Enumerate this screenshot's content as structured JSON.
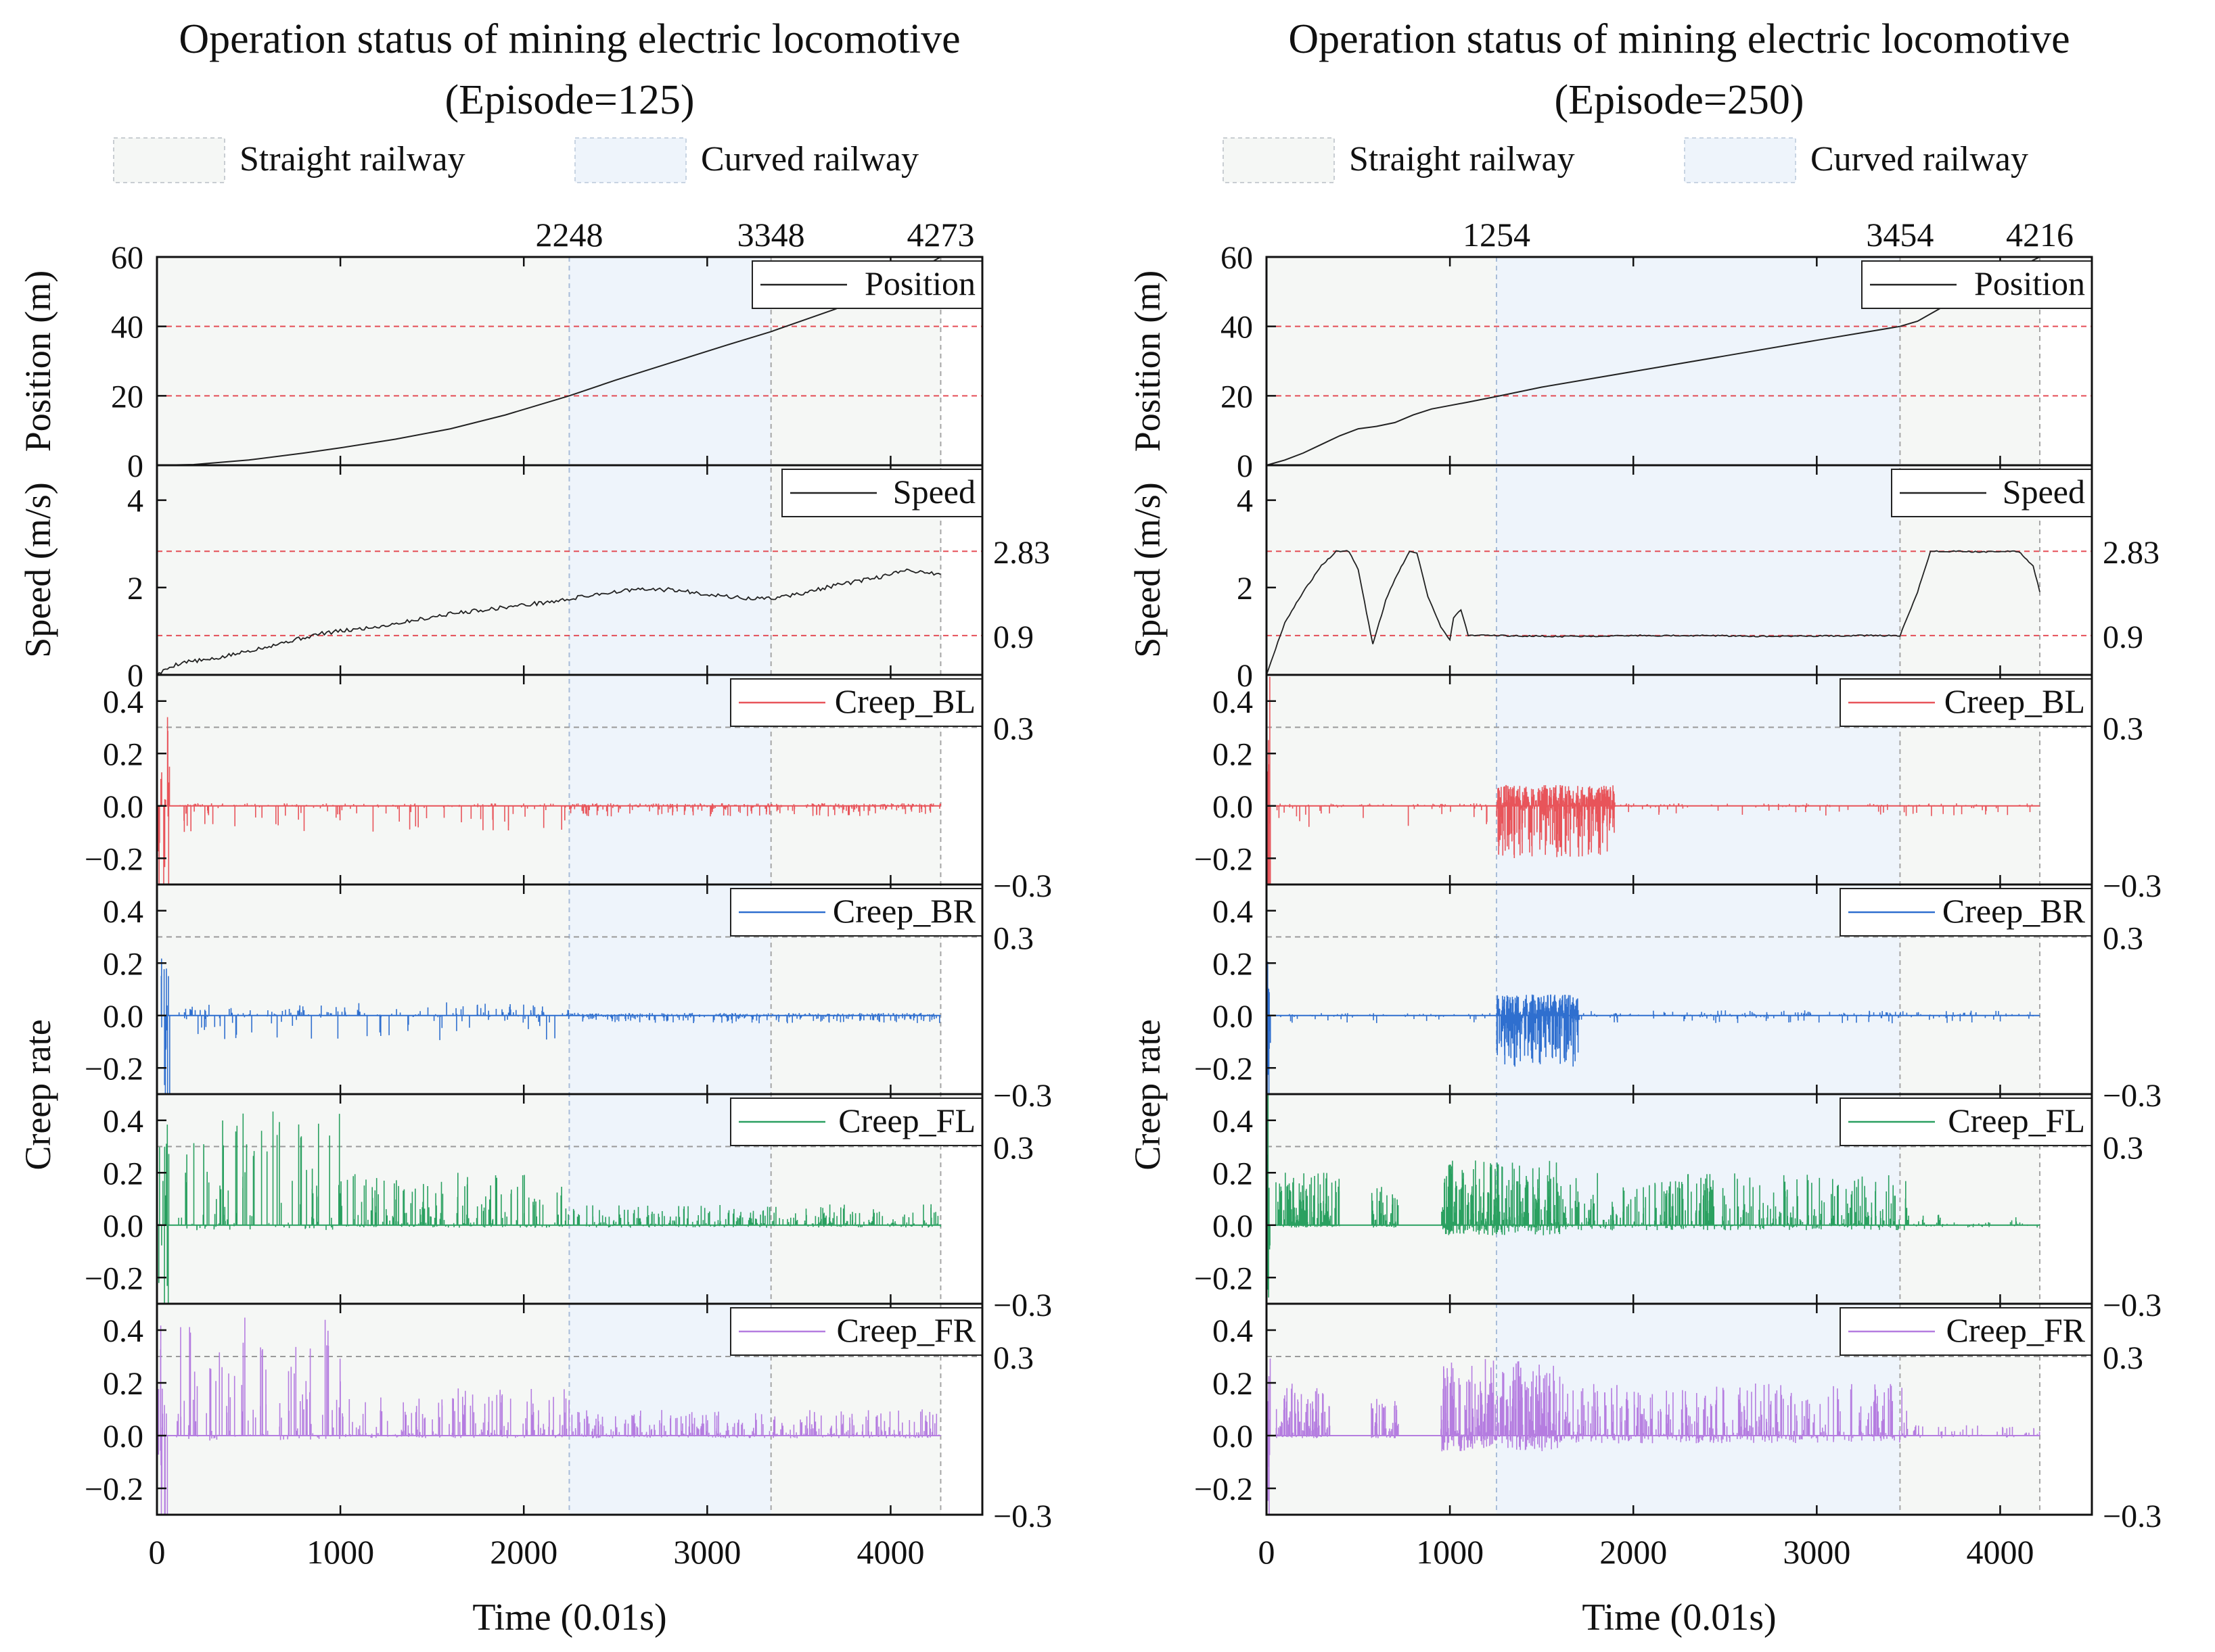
{
  "legend": {
    "straight_label": "Straight railway",
    "curved_label": "Curved railway"
  },
  "colors": {
    "straight_bg": "#f5f7f5",
    "curved_bg": "#eef4fb",
    "threshold_line": "#e0303a",
    "position": "#222222",
    "speed": "#222222",
    "creep_bl": "#e8545a",
    "creep_br": "#2f6fcf",
    "creep_fl": "#2aa060",
    "creep_fr": "#b57de0"
  },
  "chart_data": [
    {
      "type": "line",
      "title_line1": "Operation status of mining electric locomotive",
      "title_line2": "(Episode=125)",
      "xlabel": "Time (0.01s)",
      "xlim": [
        0,
        4500
      ],
      "x_ticks": [
        "0",
        "1000",
        "2000",
        "3000",
        "4000"
      ],
      "segment_markers": [
        "2248",
        "3348",
        "4273"
      ],
      "segments": [
        {
          "type": "straight",
          "x": [
            0,
            2248
          ]
        },
        {
          "type": "curved",
          "x": [
            2248,
            3348
          ]
        },
        {
          "type": "straight",
          "x": [
            3348,
            4273
          ]
        }
      ],
      "position": {
        "ylabel": "Position (m)",
        "ylim": [
          0,
          60
        ],
        "y_ticks": [
          "0",
          "20",
          "40",
          "60"
        ],
        "thresholds": [
          20,
          40
        ],
        "legend": "Position",
        "x": [
          0,
          200,
          500,
          800,
          1000,
          1300,
          1600,
          1900,
          2248,
          2500,
          2800,
          3100,
          3348,
          3700,
          4000,
          4273
        ],
        "y": [
          0,
          0.2,
          1.5,
          3.5,
          5,
          7.5,
          10.5,
          14.5,
          20,
          24.5,
          29.5,
          34.5,
          38.5,
          45,
          52,
          60
        ]
      },
      "speed": {
        "ylabel": "Speed (m/s)",
        "ylim": [
          0,
          4.8
        ],
        "y_ticks": [
          "0",
          "2",
          "4"
        ],
        "thresholds": [
          0.9,
          2.83
        ],
        "right_labels": [
          "0.9",
          "2.83"
        ],
        "legend": "Speed",
        "x": [
          0,
          80,
          150,
          300,
          450,
          600,
          750,
          900,
          1000,
          1200,
          1400,
          1600,
          1800,
          2000,
          2200,
          2400,
          2600,
          2800,
          3000,
          3200,
          3348,
          3500,
          3700,
          3900,
          4100,
          4273
        ],
        "y": [
          0,
          0.2,
          0.3,
          0.35,
          0.5,
          0.65,
          0.8,
          0.95,
          1.0,
          1.1,
          1.25,
          1.4,
          1.5,
          1.6,
          1.7,
          1.85,
          1.95,
          1.95,
          1.85,
          1.75,
          1.75,
          1.85,
          2.05,
          2.2,
          2.4,
          2.3
        ]
      },
      "creep": {
        "ylabel": "Creep rate",
        "ylim": [
          -0.3,
          0.5
        ],
        "y_ticks": [
          "−0.2",
          "0.0",
          "0.2",
          "0.4"
        ],
        "thresholds": [
          -0.3,
          0.3
        ],
        "right_labels": [
          "0.3",
          "−0.3"
        ],
        "panels": [
          {
            "name": "Creep_BL",
            "color_key": "creep_bl",
            "seed": 11,
            "startup": 70,
            "zones": [
              {
                "x": [
                  100,
                  2248
                ],
                "up": 0.01,
                "down": 0.1,
                "rate": 10
              },
              {
                "x": [
                  2248,
                  4273
                ],
                "up": 0.01,
                "down": 0.04,
                "rate": 30
              }
            ]
          },
          {
            "name": "Creep_BR",
            "color_key": "creep_br",
            "seed": 23,
            "startup": 70,
            "zones": [
              {
                "x": [
                  100,
                  2248
                ],
                "up": 0.05,
                "down": 0.1,
                "rate": 10
              },
              {
                "x": [
                  2248,
                  4273
                ],
                "up": 0.01,
                "down": 0.03,
                "rate": 30
              }
            ]
          },
          {
            "name": "Creep_FL",
            "color_key": "creep_fl",
            "seed": 37,
            "startup": 70,
            "zones": [
              {
                "x": [
                  100,
                  1000
                ],
                "up": 0.45,
                "down": 0.02,
                "rate": 14
              },
              {
                "x": [
                  1000,
                  2248
                ],
                "up": 0.2,
                "down": 0.01,
                "rate": 20
              },
              {
                "x": [
                  2248,
                  4273
                ],
                "up": 0.08,
                "down": 0.01,
                "rate": 25
              }
            ]
          },
          {
            "name": "Creep_FR",
            "color_key": "creep_fr",
            "seed": 53,
            "startup": 70,
            "zones": [
              {
                "x": [
                  100,
                  1000
                ],
                "up": 0.45,
                "down": 0.02,
                "rate": 14
              },
              {
                "x": [
                  1000,
                  2248
                ],
                "up": 0.18,
                "down": 0.01,
                "rate": 20
              },
              {
                "x": [
                  2248,
                  4273
                ],
                "up": 0.1,
                "down": 0.01,
                "rate": 25
              }
            ]
          }
        ]
      }
    },
    {
      "type": "line",
      "title_line1": "Operation status of mining electric locomotive",
      "title_line2": "(Episode=250)",
      "xlabel": "Time (0.01s)",
      "xlim": [
        0,
        4500
      ],
      "x_ticks": [
        "0",
        "1000",
        "2000",
        "3000",
        "4000"
      ],
      "segment_markers": [
        "1254",
        "3454",
        "4216"
      ],
      "segments": [
        {
          "type": "straight",
          "x": [
            0,
            1254
          ]
        },
        {
          "type": "curved",
          "x": [
            1254,
            3454
          ]
        },
        {
          "type": "straight",
          "x": [
            3454,
            4216
          ]
        }
      ],
      "position": {
        "ylabel": "Position (m)",
        "ylim": [
          0,
          60
        ],
        "y_ticks": [
          "0",
          "20",
          "40",
          "60"
        ],
        "thresholds": [
          20,
          40
        ],
        "legend": "Position",
        "x": [
          0,
          100,
          200,
          300,
          400,
          500,
          600,
          700,
          800,
          900,
          1000,
          1100,
          1254,
          1500,
          2000,
          2500,
          3000,
          3454,
          3550,
          3700,
          3900,
          4100,
          4216
        ],
        "y": [
          0,
          1.5,
          3.5,
          6,
          8.5,
          10.5,
          11.2,
          12.3,
          14.5,
          16.2,
          17.2,
          18.2,
          19.8,
          22.5,
          27,
          31.5,
          36,
          40,
          41.5,
          46,
          51.5,
          57,
          60
        ]
      },
      "speed": {
        "ylabel": "Speed (m/s)",
        "ylim": [
          0,
          4.8
        ],
        "y_ticks": [
          "0",
          "2",
          "4"
        ],
        "thresholds": [
          0.9,
          2.83
        ],
        "right_labels": [
          "0.9",
          "2.83"
        ],
        "legend": "Speed",
        "x": [
          0,
          100,
          200,
          300,
          380,
          450,
          500,
          580,
          650,
          700,
          780,
          820,
          880,
          950,
          1000,
          1020,
          1060,
          1100,
          1254,
          1600,
          2000,
          2400,
          2800,
          3200,
          3454,
          3550,
          3620,
          3700,
          3900,
          4100,
          4180,
          4216
        ],
        "y": [
          0,
          1.2,
          1.9,
          2.5,
          2.83,
          2.83,
          2.4,
          0.7,
          1.7,
          2.2,
          2.83,
          2.8,
          1.8,
          1.1,
          0.8,
          1.3,
          1.5,
          0.9,
          0.9,
          0.88,
          0.9,
          0.9,
          0.88,
          0.9,
          0.9,
          1.9,
          2.83,
          2.83,
          2.82,
          2.83,
          2.5,
          1.9
        ]
      },
      "creep": {
        "ylabel": "Creep rate",
        "ylim": [
          -0.3,
          0.5
        ],
        "y_ticks": [
          "−0.2",
          "0.0",
          "0.2",
          "0.4"
        ],
        "thresholds": [
          -0.3,
          0.3
        ],
        "right_labels": [
          "0.3",
          "−0.3"
        ],
        "panels": [
          {
            "name": "Creep_BL",
            "color_key": "creep_bl",
            "seed": 67,
            "startup": 20,
            "zones": [
              {
                "x": [
                  50,
                  1254
                ],
                "up": 0.01,
                "down": 0.08,
                "rate": 10
              },
              {
                "x": [
                  1254,
                  1900
                ],
                "up": 0.08,
                "down": 0.2,
                "rate": 120
              },
              {
                "x": [
                  1900,
                  4216
                ],
                "up": 0.01,
                "down": 0.04,
                "rate": 8
              }
            ]
          },
          {
            "name": "Creep_BR",
            "color_key": "creep_br",
            "seed": 71,
            "startup": 20,
            "zones": [
              {
                "x": [
                  50,
                  1254
                ],
                "up": 0.01,
                "down": 0.03,
                "rate": 8
              },
              {
                "x": [
                  1254,
                  1700
                ],
                "up": 0.08,
                "down": 0.2,
                "rate": 120
              },
              {
                "x": [
                  1700,
                  4216
                ],
                "up": 0.02,
                "down": 0.03,
                "rate": 10
              }
            ]
          },
          {
            "name": "Creep_FL",
            "color_key": "creep_fl",
            "seed": 79,
            "startup": 20,
            "zones": [
              {
                "x": [
                  50,
                  400
                ],
                "up": 0.2,
                "down": 0.01,
                "rate": 60
              },
              {
                "x": [
                  570,
                  720
                ],
                "up": 0.15,
                "down": 0.01,
                "rate": 50
              },
              {
                "x": [
                  950,
                  1600
                ],
                "up": 0.25,
                "down": 0.04,
                "rate": 60
              },
              {
                "x": [
                  1600,
                  3500
                ],
                "up": 0.2,
                "down": 0.02,
                "rate": 30
              },
              {
                "x": [
                  3500,
                  4216
                ],
                "up": 0.04,
                "down": 0.01,
                "rate": 10
              }
            ]
          },
          {
            "name": "Creep_FR",
            "color_key": "creep_fr",
            "seed": 83,
            "startup": 20,
            "zones": [
              {
                "x": [
                  50,
                  350
                ],
                "up": 0.2,
                "down": 0.01,
                "rate": 60
              },
              {
                "x": [
                  570,
                  720
                ],
                "up": 0.15,
                "down": 0.01,
                "rate": 50
              },
              {
                "x": [
                  950,
                  1600
                ],
                "up": 0.3,
                "down": 0.06,
                "rate": 60
              },
              {
                "x": [
                  1600,
                  3500
                ],
                "up": 0.2,
                "down": 0.03,
                "rate": 30
              },
              {
                "x": [
                  3500,
                  4216
                ],
                "up": 0.04,
                "down": 0.01,
                "rate": 10
              }
            ]
          }
        ]
      }
    }
  ]
}
